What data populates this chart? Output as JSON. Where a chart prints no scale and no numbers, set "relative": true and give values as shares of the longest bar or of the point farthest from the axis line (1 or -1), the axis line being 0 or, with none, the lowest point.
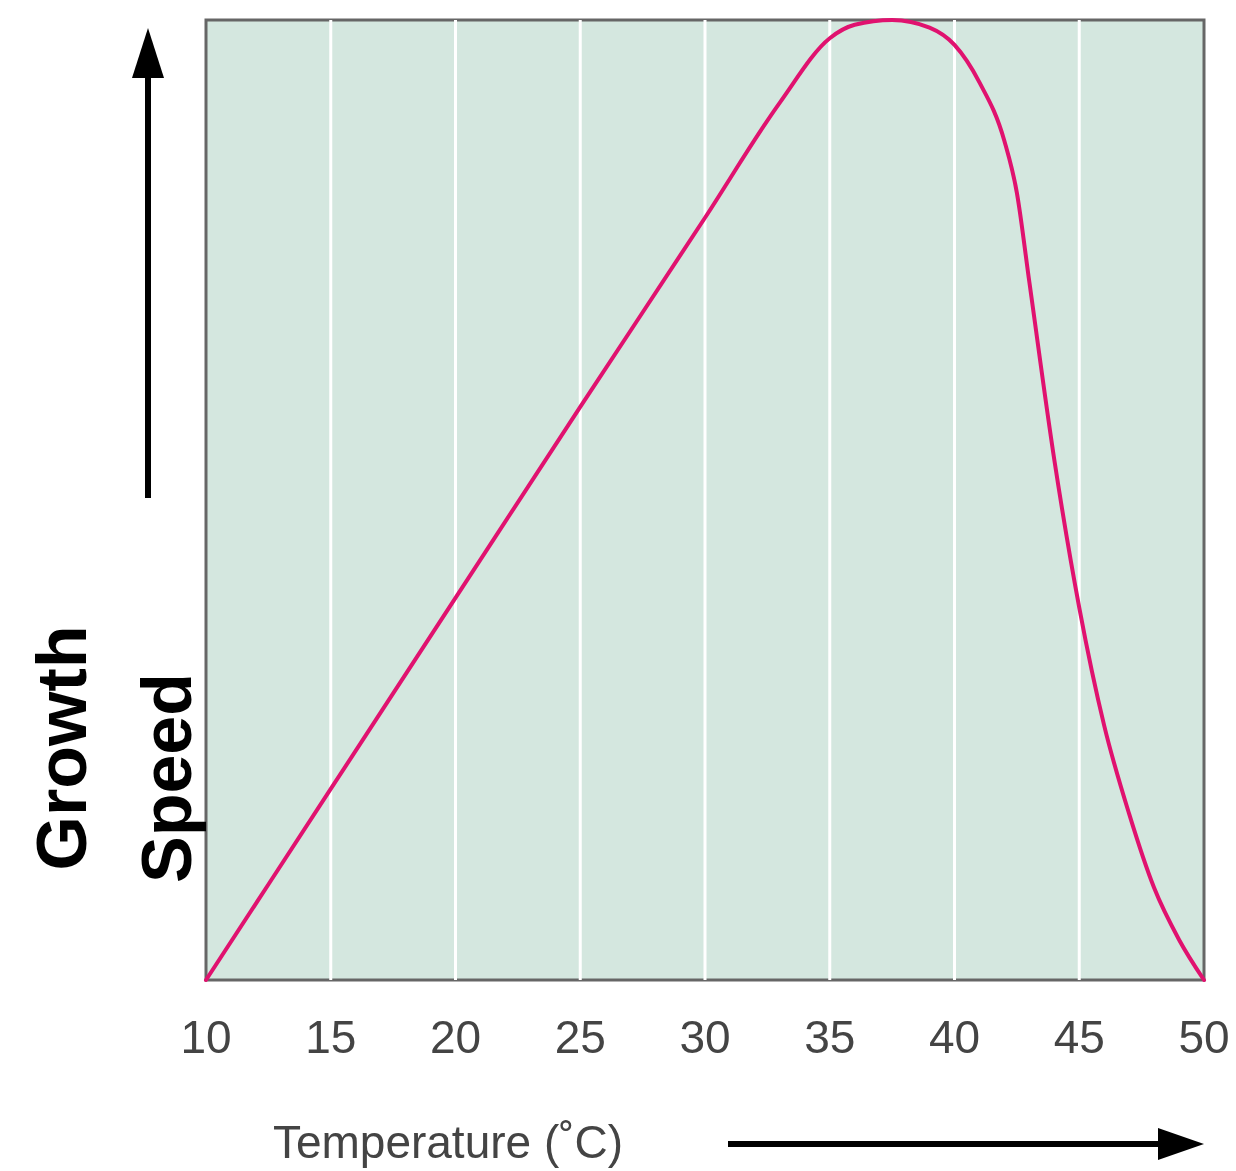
{
  "chart_data": {
    "type": "line",
    "relative": true,
    "xlabel": "Temperature (˚C)",
    "ylabel": "Growth Speed",
    "xlim": [
      10,
      50
    ],
    "xticks": [
      10,
      15,
      20,
      25,
      30,
      35,
      40,
      45,
      50
    ],
    "grid": "x",
    "marker": "none",
    "line_style": "solid",
    "series": [
      {
        "color": "#e0126f",
        "x": [
          10,
          15,
          20,
          25,
          30,
          33,
          35,
          36,
          37.5,
          39,
          40,
          41,
          42,
          42.5,
          43,
          44,
          45,
          46,
          47,
          48,
          49,
          50
        ],
        "values": [
          0,
          0.199,
          0.398,
          0.597,
          0.794,
          0.914,
          0.981,
          0.995,
          1,
          0.992,
          0.974,
          0.935,
          0.874,
          0.82,
          0.727,
          0.542,
          0.388,
          0.265,
          0.173,
          0.096,
          0.042,
          0
        ]
      }
    ]
  }
}
